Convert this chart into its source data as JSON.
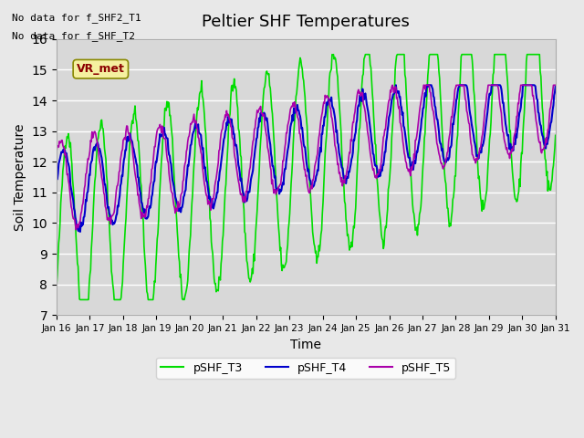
{
  "title": "Peltier SHF Temperatures",
  "xlabel": "Time",
  "ylabel": "Soil Temperature",
  "ylim": [
    7.0,
    16.0
  ],
  "yticks": [
    7.0,
    8.0,
    9.0,
    10.0,
    11.0,
    12.0,
    13.0,
    14.0,
    15.0,
    16.0
  ],
  "xtick_labels": [
    "Jan 16",
    "Jan 17",
    "Jan 18",
    "Jan 19",
    "Jan 20",
    "Jan 21",
    "Jan 22",
    "Jan 23",
    "Jan 24",
    "Jan 25",
    "Jan 26",
    "Jan 27",
    "Jan 28",
    "Jan 29",
    "Jan 30",
    "Jan 31"
  ],
  "xtick_positions": [
    0,
    1,
    2,
    3,
    4,
    5,
    6,
    7,
    8,
    9,
    10,
    11,
    12,
    13,
    14,
    15
  ],
  "annotations": [
    "No data for f_SHF2_T1",
    "No data for f_SHF_T2"
  ],
  "box_label": "VR_met",
  "box_color": "#f5f0a0",
  "box_text_color": "#8b0000",
  "legend_labels": [
    "pSHF_T3",
    "pSHF_T4",
    "pSHF_T5"
  ],
  "line_colors": [
    "#00dd00",
    "#0000cc",
    "#aa00aa"
  ],
  "background_color": "#e8e8e8",
  "plot_bg_color": "#d8d8d8",
  "grid_color": "#ffffff",
  "figsize": [
    6.4,
    4.8
  ],
  "dpi": 100
}
